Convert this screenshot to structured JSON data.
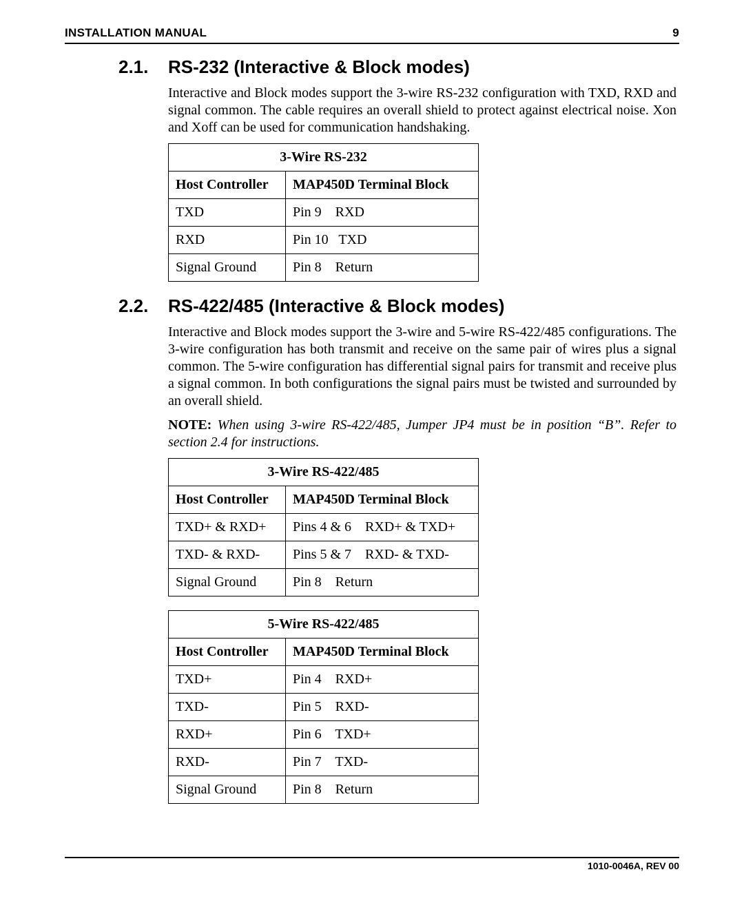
{
  "header": {
    "title": "INSTALLATION MANUAL",
    "page_number": "9"
  },
  "footer": {
    "doc_id": "1010-0046A, REV 00"
  },
  "sec1": {
    "number": "2.1.",
    "title": "RS-232 (Interactive & Block modes)",
    "para": "Interactive and Block modes support the 3-wire RS-232 configuration with TXD, RXD and signal common. The cable requires an overall shield to protect against electrical noise. Xon and Xoff can be used for communication handshaking.",
    "table": {
      "title": "3-Wire RS-232",
      "col_host": "Host Controller",
      "col_term": "MAP450D Terminal Block",
      "rows": [
        {
          "host": "TXD",
          "term": "Pin 9    RXD"
        },
        {
          "host": "RXD",
          "term": "Pin 10   TXD"
        },
        {
          "host": "Signal Ground",
          "term": "Pin 8    Return"
        }
      ]
    }
  },
  "sec2": {
    "number": "2.2.",
    "title": "RS-422/485 (Interactive & Block modes)",
    "para": "Interactive and Block modes support the 3-wire and 5-wire RS-422/485 configurations. The 3-wire configuration has both transmit and receive on the same pair of wires plus a signal common. The 5-wire configuration has differential signal pairs for transmit and receive plus a signal common. In both configurations the signal pairs must be twisted and surrounded by an overall shield.",
    "note_label": "NOTE:",
    "note_body": "When using 3-wire RS-422/485, Jumper JP4 must be in position “B”. Refer to section 2.4 for instructions.",
    "table3": {
      "title": "3-Wire RS-422/485",
      "col_host": "Host Controller",
      "col_term": "MAP450D Terminal Block",
      "rows": [
        {
          "host": "TXD+ & RXD+",
          "term": "Pins 4 & 6    RXD+ & TXD+"
        },
        {
          "host": "TXD- & RXD-",
          "term": "Pins 5 & 7    RXD- & TXD-"
        },
        {
          "host": "Signal Ground",
          "term": "Pin 8    Return"
        }
      ]
    },
    "table5": {
      "title": "5-Wire RS-422/485",
      "col_host": "Host Controller",
      "col_term": "MAP450D Terminal Block",
      "rows": [
        {
          "host": "TXD+",
          "term": "Pin 4    RXD+"
        },
        {
          "host": "TXD-",
          "term": "Pin 5    RXD-"
        },
        {
          "host": "RXD+",
          "term": "Pin 6    TXD+"
        },
        {
          "host": "RXD-",
          "term": "Pin 7    TXD-"
        },
        {
          "host": "Signal Ground",
          "term": "Pin 8    Return"
        }
      ]
    }
  }
}
